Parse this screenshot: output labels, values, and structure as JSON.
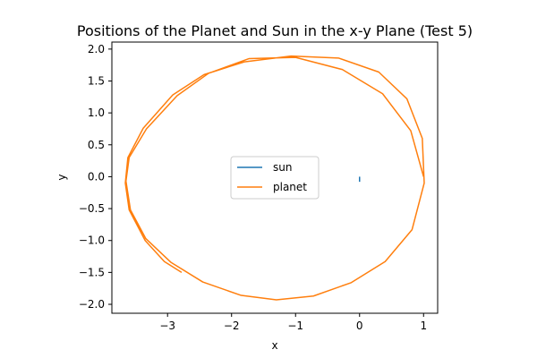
{
  "chart_data": {
    "type": "line",
    "title": "Positions of the Planet and Sun in the x-y Plane (Test 5)",
    "xlabel": "x",
    "ylabel": "y",
    "xlim": [
      -3.87,
      1.22
    ],
    "ylim": [
      -2.14,
      2.11
    ],
    "xticks": [
      -3,
      -2,
      -1,
      0,
      1
    ],
    "xtick_labels": [
      "−3",
      "−2",
      "−1",
      "0",
      "1"
    ],
    "yticks": [
      -2.0,
      -1.5,
      -1.0,
      -0.5,
      0.0,
      0.5,
      1.0,
      1.5,
      2.0
    ],
    "ytick_labels": [
      "−2.0",
      "−1.5",
      "−1.0",
      "−0.5",
      "0.0",
      "0.5",
      "1.0",
      "1.5",
      "2.0"
    ],
    "grid": false,
    "legend_position": "center",
    "series": [
      {
        "name": "sun",
        "color": "#1f77b4",
        "x": [
          0.0,
          0.0,
          0.0
        ],
        "y": [
          -0.08,
          -0.04,
          0.0
        ]
      },
      {
        "name": "planet",
        "color": "#ff7f0e",
        "x": [
          1.0,
          0.8,
          0.36,
          -0.27,
          -1.0,
          -1.73,
          -2.36,
          -2.85,
          -3.33,
          -3.6,
          -3.65,
          -3.58,
          -3.34,
          -2.95,
          -2.45,
          -1.85,
          -1.3,
          -0.72,
          -0.13,
          0.4,
          0.82,
          1.01,
          0.98,
          0.74,
          0.3,
          -0.33,
          -1.07,
          -1.8,
          -2.43,
          -2.92,
          -3.38,
          -3.62,
          -3.66,
          -3.6,
          -3.35,
          -3.05,
          -2.78
        ],
        "y": [
          0.0,
          0.72,
          1.3,
          1.68,
          1.87,
          1.85,
          1.62,
          1.27,
          0.75,
          0.3,
          -0.07,
          -0.52,
          -0.97,
          -1.34,
          -1.65,
          -1.86,
          -1.93,
          -1.87,
          -1.66,
          -1.33,
          -0.83,
          -0.1,
          0.6,
          1.22,
          1.64,
          1.86,
          1.89,
          1.8,
          1.6,
          1.28,
          0.76,
          0.3,
          -0.1,
          -0.52,
          -1.0,
          -1.33,
          -1.5
        ]
      }
    ]
  }
}
